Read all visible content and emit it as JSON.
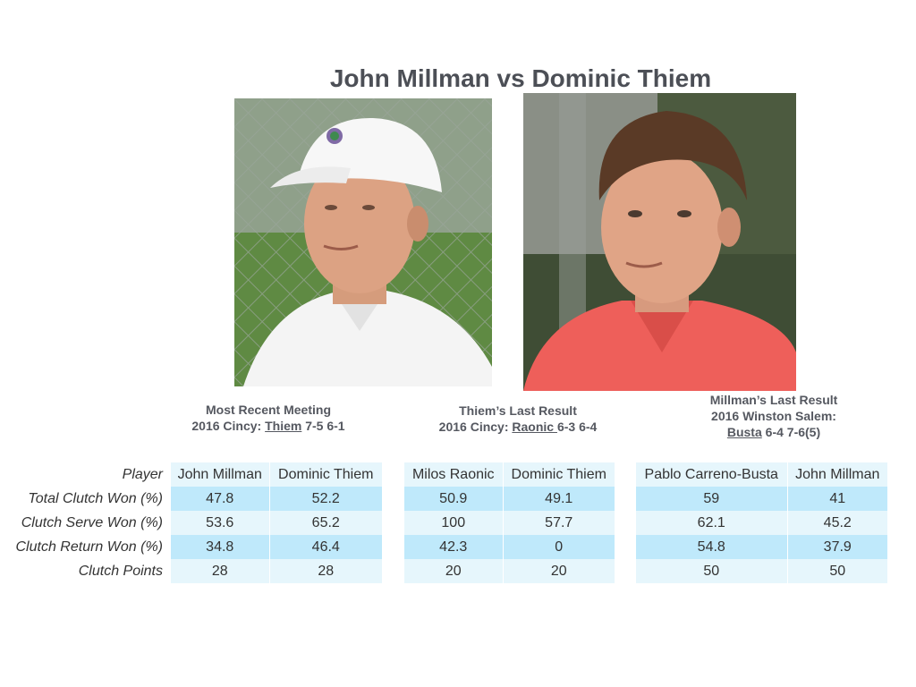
{
  "title": "John Millman vs Dominic Thiem",
  "captions": {
    "recent_meeting": {
      "line1": "Most Recent Meeting",
      "prefix": "2016 Cincy: ",
      "winner": "Thiem",
      "score": " 7-5 6-1"
    },
    "thiem_last": {
      "line1": "Thiem’s Last Result",
      "prefix": "2016 Cincy: ",
      "winner": "Raonic ",
      "score": "6-3 6-4"
    },
    "millman_last": {
      "line1": "Millman’s Last Result",
      "line2": "2016 Winston Salem:",
      "winner": "Busta",
      "score": " 6-4 7-6(5)"
    }
  },
  "row_labels": [
    "Player",
    "Total Clutch Won (%)",
    "Clutch Serve Won (%)",
    "Clutch Return Won (%)",
    "Clutch Points"
  ],
  "tables": [
    {
      "players": [
        "John Millman",
        "Dominic Thiem"
      ],
      "rows": [
        [
          "47.8",
          "52.2"
        ],
        [
          "53.6",
          "65.2"
        ],
        [
          "34.8",
          "46.4"
        ],
        [
          "28",
          "28"
        ]
      ]
    },
    {
      "players": [
        "Milos Raonic",
        "Dominic Thiem"
      ],
      "rows": [
        [
          "50.9",
          "49.1"
        ],
        [
          "100",
          "57.7"
        ],
        [
          "42.3",
          "0"
        ],
        [
          "20",
          "20"
        ]
      ]
    },
    {
      "players": [
        "Pablo Carreno-Busta",
        "John Millman"
      ],
      "rows": [
        [
          "59",
          "41"
        ],
        [
          "62.1",
          "45.2"
        ],
        [
          "54.8",
          "37.9"
        ],
        [
          "50",
          "50"
        ]
      ]
    }
  ],
  "colors": {
    "row_dark": "#bfe9fb",
    "row_light": "#e6f6fc",
    "title": "#4c4f56"
  },
  "photos": {
    "left": "john-millman-photo",
    "right": "dominic-thiem-photo"
  }
}
